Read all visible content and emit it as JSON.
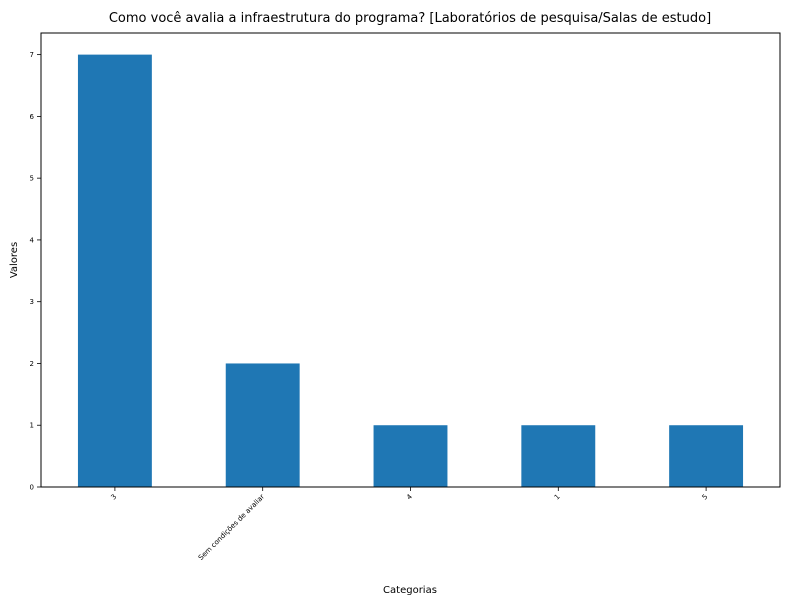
{
  "chart_data": {
    "type": "bar",
    "title": "Como você avalia a infraestrutura do programa? [Laboratórios de pesquisa/Salas de estudo]",
    "xlabel": "Categorias",
    "ylabel": "Valores",
    "categories": [
      "3",
      "Sem condições de avaliar",
      "4",
      "1",
      "5"
    ],
    "values": [
      7,
      2,
      1,
      1,
      1
    ],
    "ylim": [
      0,
      7.35
    ],
    "yticks": [
      0,
      1,
      2,
      3,
      4,
      5,
      6,
      7
    ],
    "grid": false,
    "legend": "none",
    "bar_color": "#1f77b4"
  }
}
